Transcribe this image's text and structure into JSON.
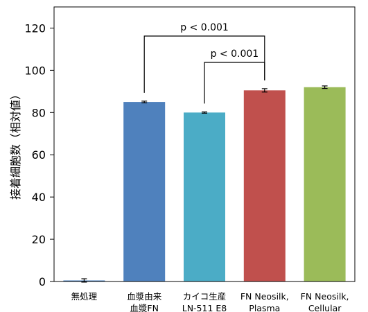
{
  "chart_data": {
    "type": "bar",
    "ylabel": "接着細胞数（相対値）",
    "ylim": [
      0,
      130
    ],
    "yticks": [
      0,
      20,
      40,
      60,
      80,
      100,
      120
    ],
    "grid": false,
    "categories": [
      {
        "lines": [
          "無処理"
        ],
        "value": 0.5,
        "error": 0.8,
        "color": "#4e81bd"
      },
      {
        "lines": [
          "血漿由来",
          "血漿FN"
        ],
        "value": 85,
        "error": 0.4,
        "color": "#4f81bd"
      },
      {
        "lines": [
          "カイコ生産",
          "LN-511 E8"
        ],
        "value": 80,
        "error": 0.3,
        "color": "#4bacc6"
      },
      {
        "lines": [
          "FN Neosilk,",
          "Plasma"
        ],
        "value": 90.5,
        "error": 0.8,
        "color": "#c0504d"
      },
      {
        "lines": [
          "FN Neosilk,",
          "Cellular"
        ],
        "value": 92,
        "error": 0.6,
        "color": "#9bbb59"
      }
    ],
    "annotations": [
      {
        "from": 1,
        "to": 3,
        "label": "p < 0.001"
      },
      {
        "from": 2,
        "to": 3,
        "label": "p < 0.001"
      }
    ]
  }
}
